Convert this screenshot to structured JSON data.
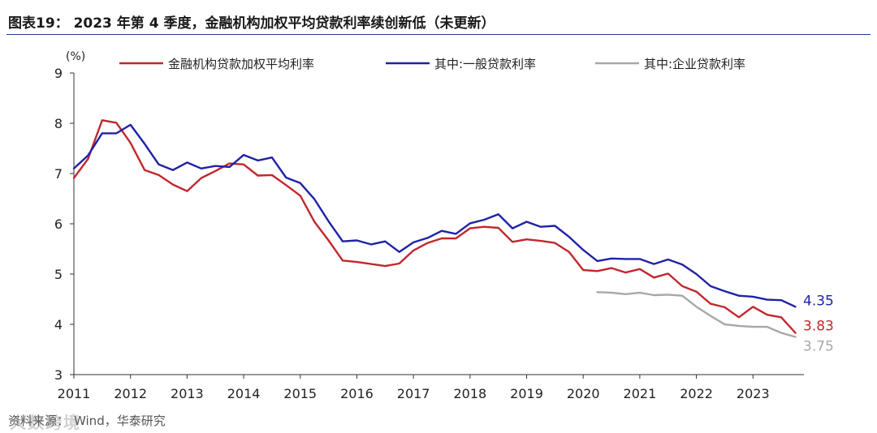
{
  "figure": {
    "title": "图表19：   2023 年第 4 季度，金融机构加权平均贷款利率续创新低（未更新）",
    "source_label": "资料来源：",
    "source": "Wind，华泰研究",
    "watermark": "大数跨境"
  },
  "chart_data": {
    "type": "line",
    "title": "",
    "ylabel": "(%)",
    "xlabel": "",
    "ylim": [
      3,
      9
    ],
    "yticks": [
      "3",
      "4",
      "5",
      "6",
      "7",
      "8",
      "9"
    ],
    "xlim": [
      2011,
      2023.9
    ],
    "xticks": [
      "2011",
      "2012",
      "2013",
      "2014",
      "2015",
      "2016",
      "2017",
      "2018",
      "2019",
      "2020",
      "2021",
      "2022",
      "2023"
    ],
    "legend": "top",
    "colors": {
      "weighted": "#c0282d",
      "general": "#1f22a6",
      "enterprise": "#a8a8a8"
    },
    "series": [
      {
        "name": "金融机构贷款加权平均利率",
        "key": "weighted",
        "x": [
          2011.0,
          2011.25,
          2011.5,
          2011.75,
          2012.0,
          2012.25,
          2012.5,
          2012.75,
          2013.0,
          2013.25,
          2013.5,
          2013.75,
          2014.0,
          2014.25,
          2014.5,
          2014.75,
          2015.0,
          2015.25,
          2015.5,
          2015.75,
          2016.0,
          2016.25,
          2016.5,
          2016.75,
          2017.0,
          2017.25,
          2017.5,
          2017.75,
          2018.0,
          2018.25,
          2018.5,
          2018.75,
          2019.0,
          2019.25,
          2019.5,
          2019.75,
          2020.0,
          2020.25,
          2020.5,
          2020.75,
          2021.0,
          2021.25,
          2021.5,
          2021.75,
          2022.0,
          2022.25,
          2022.5,
          2022.75,
          2023.0,
          2023.25,
          2023.5,
          2023.75
        ],
        "values": [
          6.91,
          7.29,
          8.06,
          8.01,
          7.61,
          7.07,
          6.97,
          6.78,
          6.65,
          6.91,
          7.05,
          7.2,
          7.18,
          6.96,
          6.97,
          6.77,
          6.56,
          6.04,
          5.67,
          5.27,
          5.24,
          5.2,
          5.16,
          5.21,
          5.47,
          5.62,
          5.71,
          5.71,
          5.91,
          5.94,
          5.92,
          5.64,
          5.69,
          5.66,
          5.62,
          5.44,
          5.08,
          5.06,
          5.12,
          5.03,
          5.1,
          4.93,
          5.01,
          4.76,
          4.65,
          4.41,
          4.34,
          4.14,
          4.35,
          4.19,
          4.14,
          3.83
        ]
      },
      {
        "name": "其中:一般贷款利率",
        "key": "general",
        "x": [
          2011.0,
          2011.25,
          2011.5,
          2011.75,
          2012.0,
          2012.25,
          2012.5,
          2012.75,
          2013.0,
          2013.25,
          2013.5,
          2013.75,
          2014.0,
          2014.25,
          2014.5,
          2014.75,
          2015.0,
          2015.25,
          2015.5,
          2015.75,
          2016.0,
          2016.25,
          2016.5,
          2016.75,
          2017.0,
          2017.25,
          2017.5,
          2017.75,
          2018.0,
          2018.25,
          2018.5,
          2018.75,
          2019.0,
          2019.25,
          2019.5,
          2019.75,
          2020.0,
          2020.25,
          2020.5,
          2020.75,
          2021.0,
          2021.25,
          2021.5,
          2021.75,
          2022.0,
          2022.25,
          2022.5,
          2022.75,
          2023.0,
          2023.25,
          2023.5,
          2023.75
        ],
        "values": [
          7.1,
          7.36,
          7.8,
          7.8,
          7.97,
          7.59,
          7.18,
          7.07,
          7.22,
          7.1,
          7.15,
          7.13,
          7.37,
          7.26,
          7.32,
          6.92,
          6.81,
          6.49,
          6.05,
          5.65,
          5.67,
          5.59,
          5.65,
          5.44,
          5.63,
          5.72,
          5.86,
          5.8,
          6.01,
          6.08,
          6.19,
          5.91,
          6.04,
          5.94,
          5.96,
          5.74,
          5.48,
          5.26,
          5.31,
          5.3,
          5.3,
          5.2,
          5.29,
          5.19,
          5.0,
          4.76,
          4.66,
          4.57,
          4.55,
          4.49,
          4.48,
          4.35
        ]
      },
      {
        "name": "其中:企业贷款利率",
        "key": "enterprise",
        "x": [
          2020.25,
          2020.5,
          2020.75,
          2021.0,
          2021.25,
          2021.5,
          2021.75,
          2022.0,
          2022.25,
          2022.5,
          2022.75,
          2023.0,
          2023.25,
          2023.5,
          2023.75
        ],
        "values": [
          4.64,
          4.63,
          4.6,
          4.63,
          4.58,
          4.59,
          4.57,
          4.35,
          4.17,
          4.0,
          3.97,
          3.95,
          3.95,
          3.83,
          3.75
        ]
      }
    ],
    "end_labels": [
      {
        "key": "general",
        "text": "4.35"
      },
      {
        "key": "weighted",
        "text": "3.83"
      },
      {
        "key": "enterprise",
        "text": "3.75"
      }
    ]
  }
}
